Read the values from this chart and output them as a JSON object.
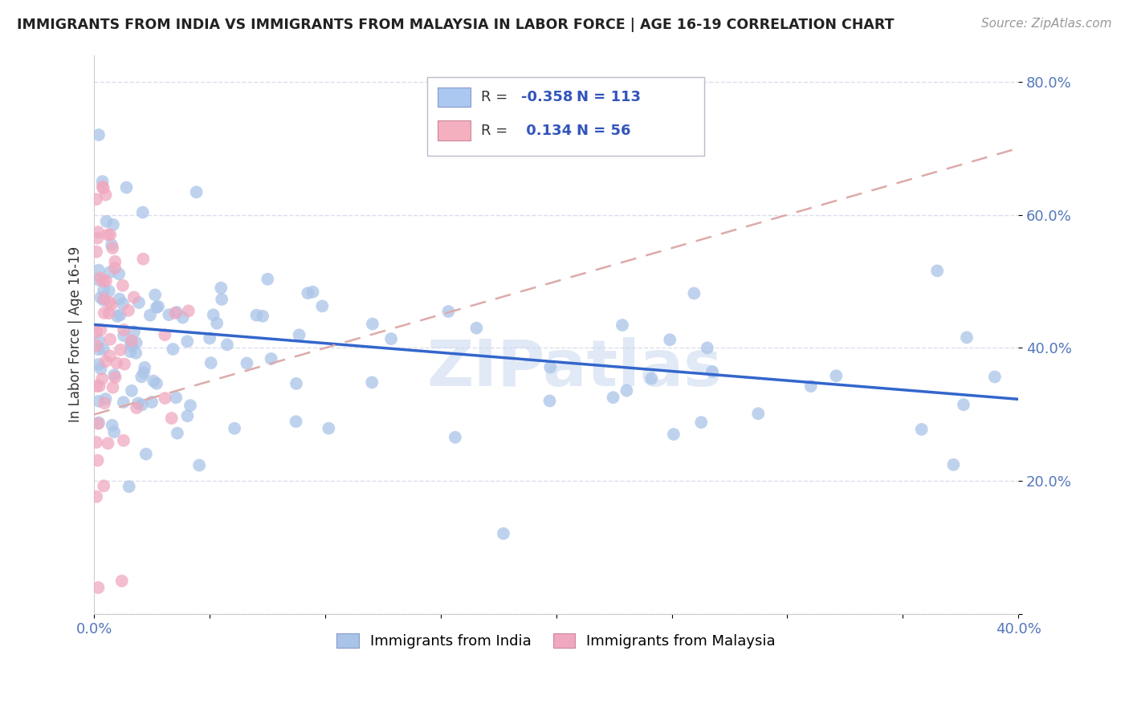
{
  "title": "IMMIGRANTS FROM INDIA VS IMMIGRANTS FROM MALAYSIA IN LABOR FORCE | AGE 16-19 CORRELATION CHART",
  "source": "Source: ZipAtlas.com",
  "ylabel": "In Labor Force | Age 16-19",
  "y_ticks": [
    0.0,
    0.2,
    0.4,
    0.6,
    0.8
  ],
  "y_tick_labels": [
    "",
    "20.0%",
    "40.0%",
    "60.0%",
    "80.0%"
  ],
  "x_lim": [
    0.0,
    0.4
  ],
  "y_lim": [
    0.0,
    0.84
  ],
  "legend_india_color": "#aac8f0",
  "legend_malaysia_color": "#f5b0c0",
  "india_R": "-0.358",
  "india_N": "113",
  "malaysia_R": "0.134",
  "malaysia_N": "56",
  "watermark": "ZIPatlas",
  "india_scatter_color": "#aac4e8",
  "malaysia_scatter_color": "#f0a8c0",
  "india_line_color": "#3366cc",
  "malaysia_line_color": "#ddaaaa",
  "grid_color": "#ddddee",
  "background_color": "#ffffff"
}
